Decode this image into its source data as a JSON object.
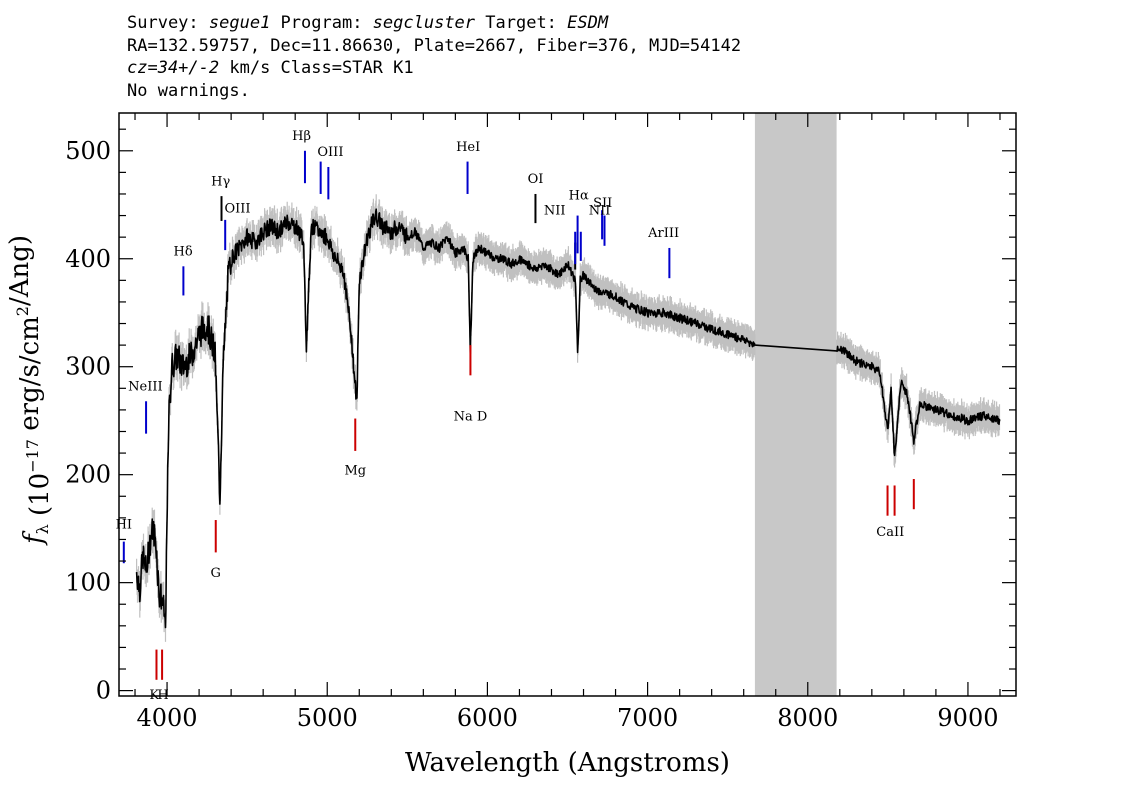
{
  "header": {
    "line1_label1": "Survey: ",
    "survey": "segue1",
    "line1_label2": " Program: ",
    "program": "segcluster",
    "line1_label3": " Target: ",
    "target": "ESDM",
    "line2": "RA=132.59757, Dec=11.86630, Plate=2667, Fiber=376, MJD=54142",
    "cz": "cz=34+/-2",
    "line3_rest": " km/s Class=STAR K1",
    "line4": "No warnings."
  },
  "chart_data": {
    "type": "line",
    "xlabel": "Wavelength (Angstroms)",
    "ylabel": "f_λ (10^-17 erg/s/cm^2/Ang)",
    "xlim": [
      3700,
      9300
    ],
    "ylim": [
      -5,
      535
    ],
    "x_ticks": [
      4000,
      5000,
      6000,
      7000,
      8000,
      9000
    ],
    "y_ticks": [
      0,
      100,
      200,
      300,
      400,
      500
    ],
    "masked_region": [
      7670,
      8180
    ],
    "series": [
      {
        "color": "#000000",
        "x": [
          3810,
          3830,
          3850,
          3870,
          3890,
          3910,
          3930,
          3950,
          3970,
          3990,
          4010,
          4030,
          4060,
          4100,
          4150,
          4200,
          4250,
          4300,
          4330,
          4350,
          4380,
          4400,
          4450,
          4500,
          4550,
          4600,
          4650,
          4700,
          4750,
          4800,
          4850,
          4870,
          4900,
          4950,
          5000,
          5050,
          5100,
          5150,
          5170,
          5185,
          5200,
          5250,
          5300,
          5350,
          5400,
          5450,
          5500,
          5550,
          5600,
          5650,
          5700,
          5750,
          5800,
          5850,
          5880,
          5893,
          5910,
          5950,
          6000,
          6050,
          6100,
          6150,
          6200,
          6250,
          6300,
          6350,
          6400,
          6450,
          6500,
          6550,
          6563,
          6580,
          6600,
          6650,
          6700,
          6800,
          6900,
          7000,
          7100,
          7200,
          7300,
          7400,
          7500,
          7600,
          7670,
          8180,
          8250,
          8300,
          8400,
          8450,
          8498,
          8520,
          8542,
          8580,
          8620,
          8662,
          8700,
          8800,
          8900,
          9000,
          9100,
          9200
        ],
        "values": [
          110,
          95,
          125,
          110,
          135,
          150,
          140,
          90,
          85,
          60,
          250,
          300,
          310,
          300,
          310,
          330,
          340,
          310,
          180,
          300,
          380,
          400,
          410,
          420,
          415,
          425,
          430,
          425,
          435,
          430,
          420,
          320,
          430,
          425,
          420,
          400,
          390,
          330,
          290,
          265,
          380,
          420,
          440,
          430,
          425,
          430,
          420,
          425,
          410,
          415,
          410,
          420,
          405,
          410,
          400,
          315,
          400,
          410,
          405,
          400,
          400,
          395,
          400,
          395,
          390,
          395,
          390,
          385,
          395,
          380,
          310,
          380,
          385,
          375,
          370,
          365,
          355,
          350,
          350,
          345,
          340,
          335,
          330,
          325,
          320,
          318,
          312,
          305,
          300,
          295,
          240,
          280,
          215,
          285,
          275,
          232,
          265,
          260,
          255,
          250,
          255,
          250
        ]
      },
      {
        "name": "error",
        "color": "#c0c0c0"
      }
    ],
    "lines": [
      {
        "label": "HI",
        "wl": 3730,
        "color": "#0000cc",
        "y0": 118,
        "y1": 138,
        "label_y": 150
      },
      {
        "label": "NeIII",
        "wl": 3869,
        "color": "#0000cc",
        "y0": 238,
        "y1": 268,
        "label_y": 278
      },
      {
        "label": "Hδ",
        "wl": 4102,
        "color": "#0000cc",
        "y0": 366,
        "y1": 393,
        "label_y": 403
      },
      {
        "label": "Hγ",
        "wl": 4340,
        "color": "#000000",
        "y0": 435,
        "y1": 458,
        "label_y": 468
      },
      {
        "label": "OIII",
        "wl": 4363,
        "color": "#0000cc",
        "y0": 408,
        "y1": 436,
        "label_y": 443
      },
      {
        "label": "Hβ",
        "wl": 4861,
        "color": "#0000cc",
        "y0": 470,
        "y1": 500,
        "label_y": 510
      },
      {
        "label": "OIII",
        "wl": 4959,
        "color": "#0000cc",
        "y0": 460,
        "y1": 490,
        "label_y": 0
      },
      {
        "label": "OIII",
        "wl": 5007,
        "color": "#0000cc",
        "y0": 455,
        "y1": 485,
        "label_y": 495
      },
      {
        "label": "HeI",
        "wl": 5876,
        "color": "#0000cc",
        "y0": 460,
        "y1": 490,
        "label_y": 500
      },
      {
        "label": "OI",
        "wl": 6300,
        "color": "#000000",
        "y0": 433,
        "y1": 460,
        "label_y": 470
      },
      {
        "label": "NII",
        "wl": 6548,
        "color": "#000000",
        "y0": 390,
        "y1": 415,
        "label_y": 0
      },
      {
        "label": "NII",
        "wl": 6548,
        "color": "#0000cc",
        "y0": 395,
        "y1": 425,
        "label_y": 441
      },
      {
        "label": "Hα",
        "wl": 6563,
        "color": "#0000cc",
        "y0": 405,
        "y1": 440,
        "label_y": 455
      },
      {
        "label": "NII",
        "wl": 6583,
        "color": "#0000cc",
        "y0": 398,
        "y1": 425,
        "label_y": 0
      },
      {
        "label": "SII",
        "wl": 6716,
        "color": "#0000cc",
        "y0": 418,
        "y1": 445,
        "label_y": 0
      },
      {
        "label": "SII",
        "wl": 6731,
        "color": "#0000cc",
        "y0": 412,
        "y1": 440,
        "label_y": 0
      },
      {
        "label": "ArIII",
        "wl": 7136,
        "color": "#0000cc",
        "y0": 382,
        "y1": 410,
        "label_y": 420
      },
      {
        "label": "K",
        "wl": 3934,
        "color": "#cc0000",
        "y0": 10,
        "y1": 38,
        "label_y": 0
      },
      {
        "label": "H",
        "wl": 3969,
        "color": "#cc0000",
        "y0": 10,
        "y1": 38,
        "label_y": 0
      },
      {
        "label": "G",
        "wl": 4304,
        "color": "#cc0000",
        "y0": 128,
        "y1": 158,
        "label_y": 0
      },
      {
        "label": "Mg",
        "wl": 5175,
        "color": "#cc0000",
        "y0": 222,
        "y1": 252,
        "label_y": 0
      },
      {
        "label": "Na D",
        "wl": 5894,
        "color": "#cc0000",
        "y0": 292,
        "y1": 320,
        "label_y": 0
      },
      {
        "label": "CaII",
        "wl": 8498,
        "color": "#cc0000",
        "y0": 162,
        "y1": 190,
        "label_y": 0
      },
      {
        "label": "CaII",
        "wl": 8542,
        "color": "#cc0000",
        "y0": 162,
        "y1": 190,
        "label_y": 0
      },
      {
        "label": "CaII",
        "wl": 8662,
        "color": "#cc0000",
        "y0": 168,
        "y1": 196,
        "label_y": 0
      }
    ],
    "line_labels": [
      {
        "text": "HI",
        "wl": 3730,
        "y": 150
      },
      {
        "text": "NeIII",
        "wl": 3865,
        "y": 278
      },
      {
        "text": "Hδ",
        "wl": 4100,
        "y": 403
      },
      {
        "text": "Hγ",
        "wl": 4335,
        "y": 468
      },
      {
        "text": "OIII",
        "wl": 4440,
        "y": 443
      },
      {
        "text": "Hβ",
        "wl": 4840,
        "y": 510
      },
      {
        "text": "OIII",
        "wl": 5020,
        "y": 495
      },
      {
        "text": "HeI",
        "wl": 5880,
        "y": 500
      },
      {
        "text": "OI",
        "wl": 6300,
        "y": 470
      },
      {
        "text": "NII",
        "wl": 6420,
        "y": 441
      },
      {
        "text": "Hα",
        "wl": 6570,
        "y": 455
      },
      {
        "text": "NII",
        "wl": 6700,
        "y": 441
      },
      {
        "text": "SII",
        "wl": 6720,
        "y": 448
      },
      {
        "text": "ArIII",
        "wl": 7100,
        "y": 420
      },
      {
        "text": "K",
        "wl": 3920,
        "y": -8
      },
      {
        "text": "H",
        "wl": 3975,
        "y": -8
      },
      {
        "text": "G",
        "wl": 4304,
        "y": 105
      },
      {
        "text": "Mg",
        "wl": 5175,
        "y": 200
      },
      {
        "text": "Na D",
        "wl": 5894,
        "y": 250
      },
      {
        "text": "CaII",
        "wl": 8515,
        "y": 143
      }
    ]
  }
}
